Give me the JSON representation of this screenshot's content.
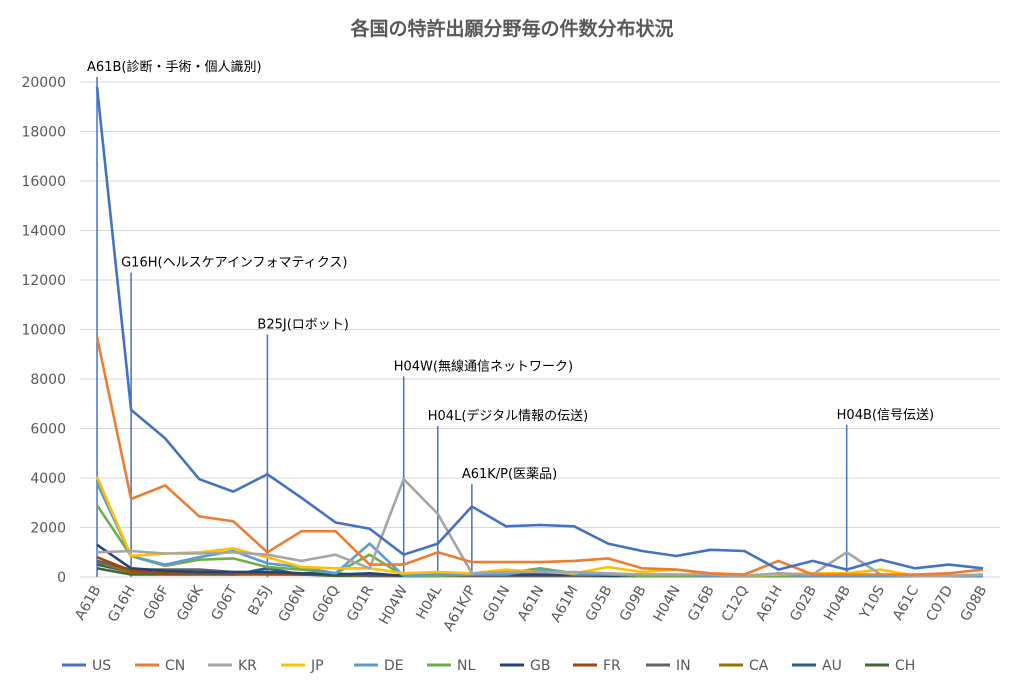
{
  "chart_data": {
    "type": "line",
    "title": "各国の特許出願分野毎の件数分布状況",
    "xlabel": "",
    "ylabel": "",
    "ylim": [
      0,
      20000
    ],
    "yticks": [
      0,
      2000,
      4000,
      6000,
      8000,
      10000,
      12000,
      14000,
      16000,
      18000,
      20000
    ],
    "grid": true,
    "legend_position": "bottom",
    "categories": [
      "A61B",
      "G16H",
      "G06F",
      "G06K",
      "G06T",
      "B25J",
      "G06N",
      "G06Q",
      "G01R",
      "H04W",
      "H04L",
      "A61K/P",
      "G01N",
      "A61N",
      "A61M",
      "G05B",
      "G09B",
      "H04N",
      "G16B",
      "C12Q",
      "A61H",
      "G02B",
      "H04B",
      "Y10S",
      "A61C",
      "C07D",
      "G08B"
    ],
    "series": [
      {
        "name": "US",
        "color": "#4472C4",
        "values": [
          19800,
          6750,
          5600,
          3950,
          3450,
          4150,
          3200,
          2200,
          1950,
          900,
          1350,
          2850,
          2050,
          2100,
          2050,
          1350,
          1050,
          850,
          1100,
          1050,
          300,
          650,
          300,
          700,
          350,
          500,
          350
        ]
      },
      {
        "name": "CN",
        "color": "#ED7D31",
        "values": [
          9700,
          3150,
          3700,
          2450,
          2250,
          1000,
          1850,
          1850,
          500,
          500,
          1000,
          600,
          600,
          600,
          650,
          750,
          350,
          300,
          150,
          100,
          650,
          100,
          100,
          100,
          100,
          150,
          300
        ]
      },
      {
        "name": "KR",
        "color": "#A5A5A5",
        "values": [
          1000,
          1050,
          950,
          950,
          1000,
          900,
          650,
          900,
          350,
          3950,
          2550,
          150,
          200,
          200,
          200,
          150,
          100,
          100,
          100,
          50,
          150,
          100,
          1000,
          100,
          50,
          50,
          100
        ]
      },
      {
        "name": "JP",
        "color": "#FFC000",
        "values": [
          4050,
          850,
          950,
          1000,
          1150,
          800,
          400,
          350,
          350,
          150,
          200,
          150,
          300,
          200,
          150,
          400,
          200,
          300,
          100,
          50,
          100,
          150,
          150,
          300,
          50,
          50,
          100
        ]
      },
      {
        "name": "DE",
        "color": "#5B9BD5",
        "values": [
          3800,
          850,
          500,
          800,
          1050,
          550,
          400,
          150,
          1350,
          50,
          100,
          100,
          100,
          300,
          100,
          100,
          100,
          100,
          50,
          50,
          100,
          50,
          50,
          50,
          50,
          50,
          50
        ]
      },
      {
        "name": "NL",
        "color": "#70AD47",
        "values": [
          2900,
          850,
          450,
          700,
          750,
          400,
          300,
          150,
          900,
          50,
          50,
          100,
          150,
          350,
          150,
          100,
          50,
          50,
          50,
          50,
          50,
          50,
          50,
          50,
          50,
          50,
          50
        ]
      },
      {
        "name": "GB",
        "color": "#264478",
        "values": [
          1300,
          350,
          250,
          200,
          200,
          200,
          150,
          100,
          150,
          50,
          50,
          100,
          100,
          100,
          100,
          50,
          50,
          50,
          50,
          50,
          50,
          50,
          50,
          50,
          50,
          50,
          50
        ]
      },
      {
        "name": "FR",
        "color": "#9E480E",
        "values": [
          800,
          250,
          150,
          150,
          150,
          150,
          100,
          100,
          100,
          50,
          50,
          100,
          100,
          100,
          100,
          50,
          50,
          50,
          50,
          50,
          50,
          50,
          50,
          50,
          50,
          50,
          50
        ]
      },
      {
        "name": "IN",
        "color": "#636363",
        "values": [
          650,
          300,
          300,
          300,
          200,
          200,
          150,
          150,
          50,
          50,
          100,
          50,
          50,
          50,
          50,
          50,
          50,
          50,
          50,
          50,
          50,
          50,
          50,
          50,
          50,
          50,
          50
        ]
      },
      {
        "name": "CA",
        "color": "#997300",
        "values": [
          600,
          200,
          150,
          150,
          150,
          100,
          100,
          100,
          50,
          50,
          50,
          50,
          50,
          50,
          50,
          50,
          50,
          50,
          50,
          50,
          50,
          50,
          50,
          50,
          50,
          50,
          50
        ]
      },
      {
        "name": "AU",
        "color": "#255E91",
        "values": [
          500,
          200,
          150,
          150,
          100,
          350,
          100,
          100,
          50,
          50,
          50,
          50,
          50,
          50,
          50,
          50,
          50,
          50,
          50,
          50,
          50,
          50,
          50,
          50,
          50,
          50,
          50
        ]
      },
      {
        "name": "CH",
        "color": "#43682B",
        "values": [
          350,
          100,
          100,
          100,
          100,
          100,
          100,
          50,
          50,
          50,
          50,
          50,
          50,
          50,
          50,
          50,
          50,
          50,
          50,
          50,
          50,
          50,
          50,
          50,
          50,
          50,
          50
        ]
      }
    ],
    "annotations": [
      {
        "category": "A61B",
        "label": "A61B(診断・手術・個人識別)",
        "top_value": 20200
      },
      {
        "category": "G16H",
        "label": "G16H(ヘルスケアインフォマティクス)",
        "top_value": 12300
      },
      {
        "category": "B25J",
        "label": "B25J(ロボット)",
        "top_value": 9800
      },
      {
        "category": "H04W",
        "label": "H04W(無線通信ネットワーク)",
        "top_value": 8100
      },
      {
        "category": "H04L",
        "label": "H04L(デジタル情報の伝送)",
        "top_value": 6100
      },
      {
        "category": "A61K/P",
        "label": "A61K/P(医薬品)",
        "top_value": 3750
      },
      {
        "category": "H04B",
        "label": "H04B(信号伝送)",
        "top_value": 6150
      }
    ]
  }
}
